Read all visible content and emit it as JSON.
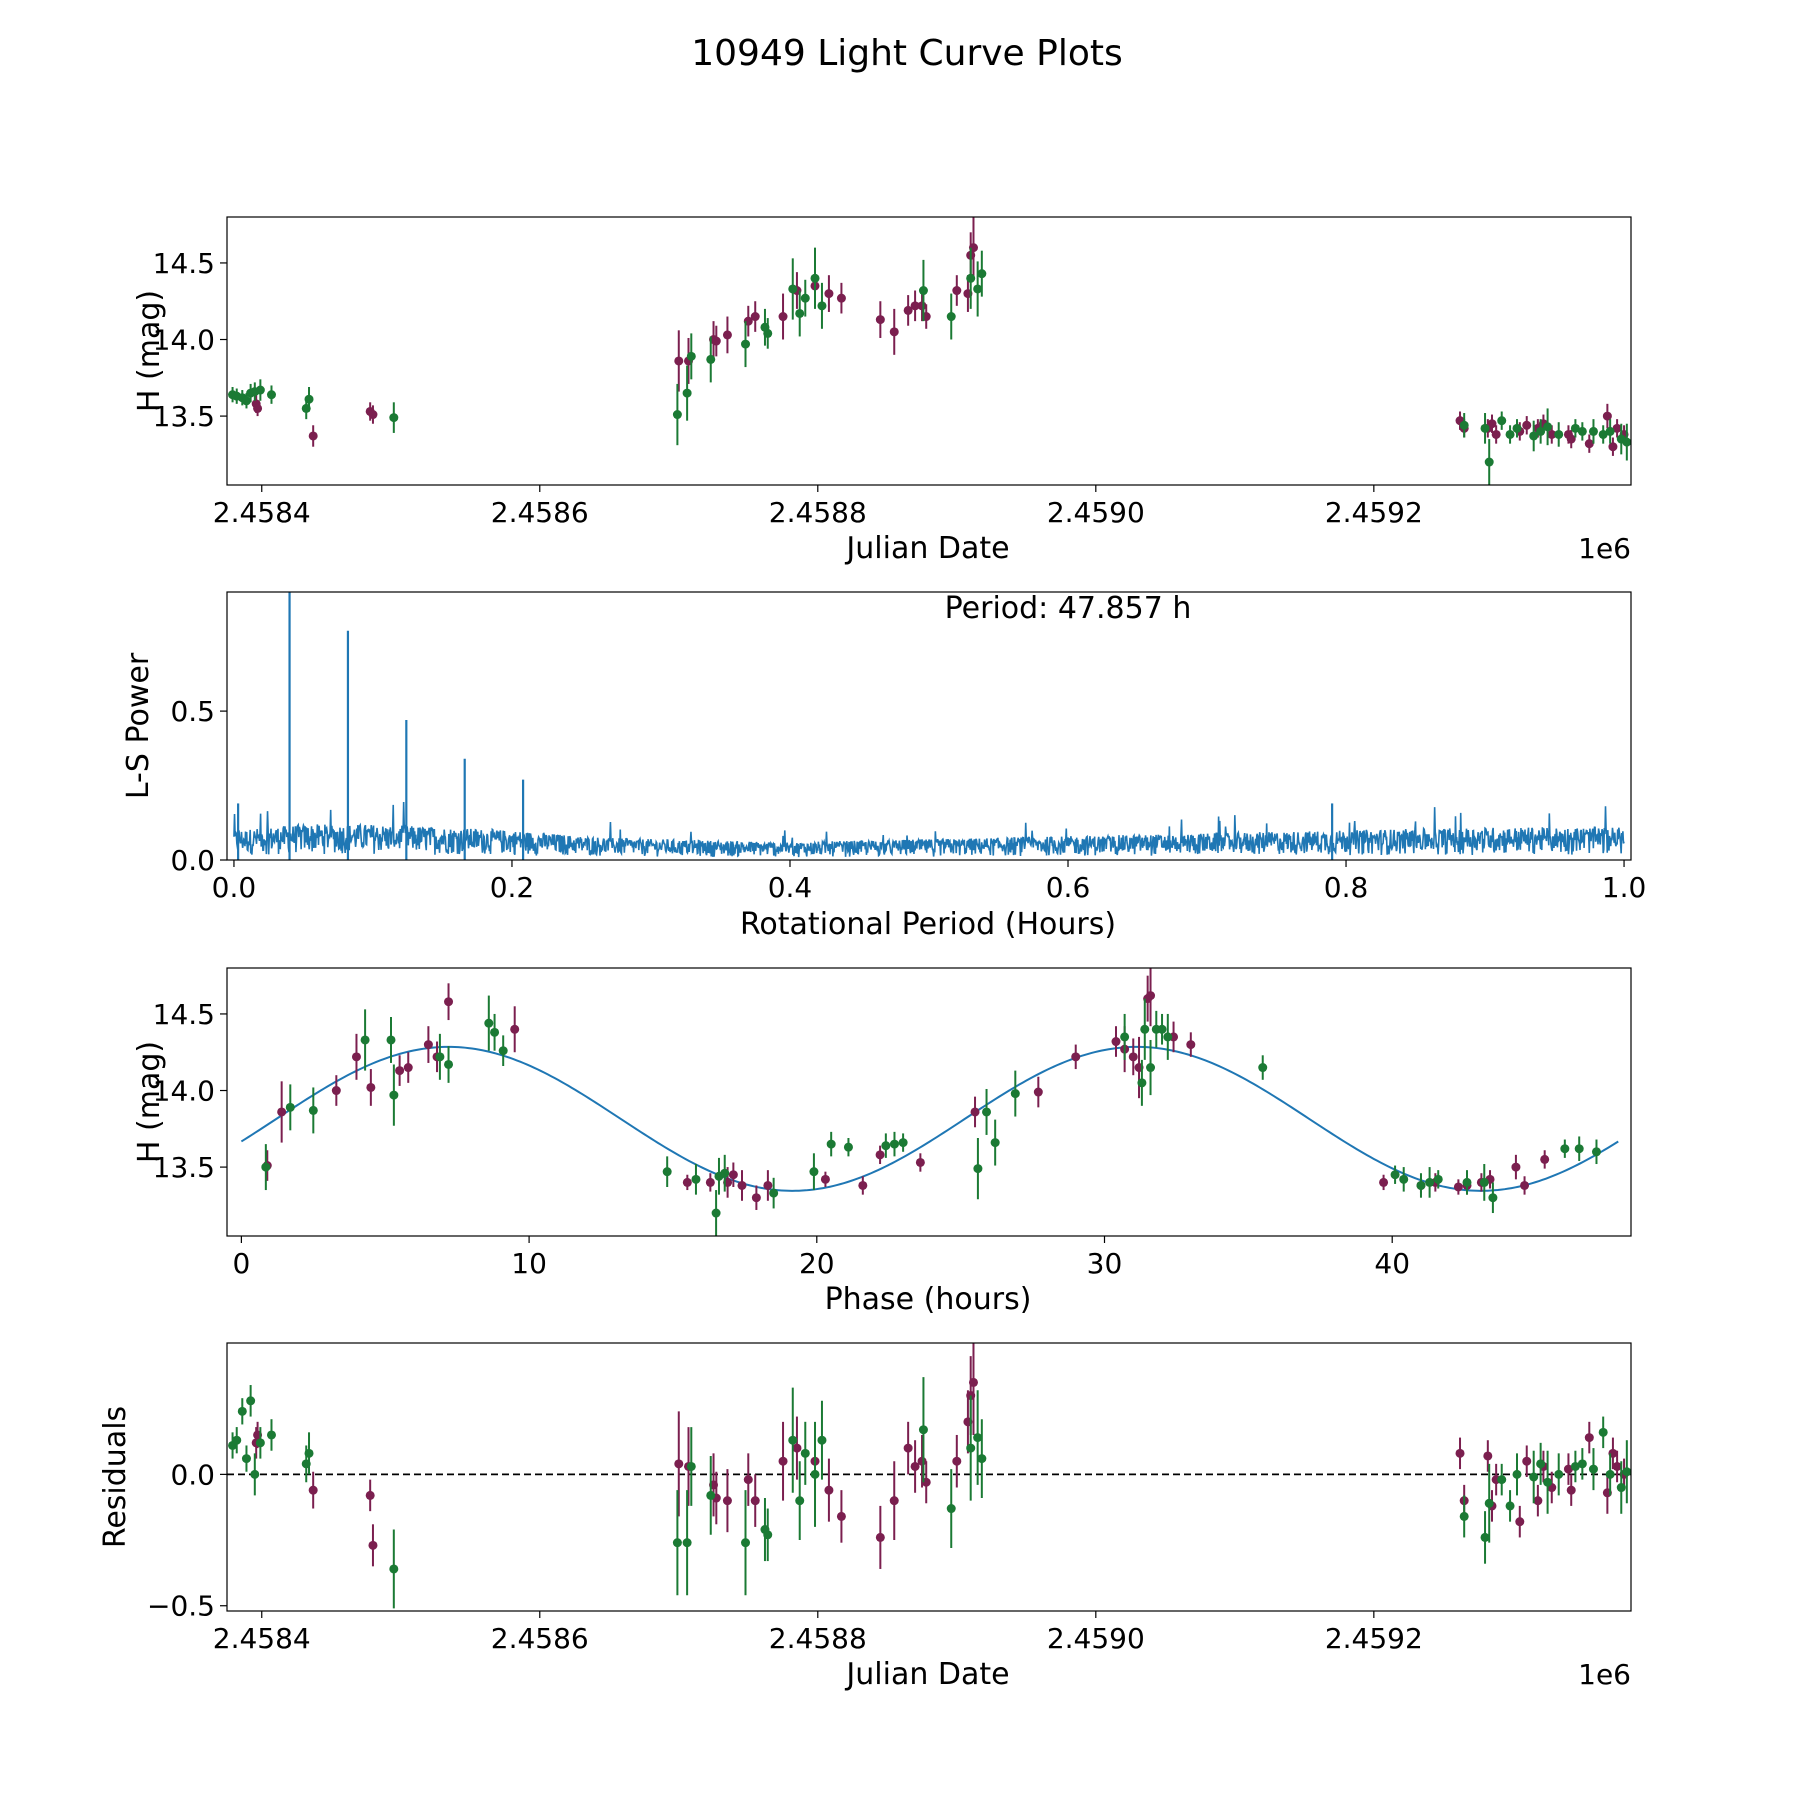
{
  "figure": {
    "title": "10949 Light Curve Plots",
    "colors": {
      "set_a": "#7b1f4f",
      "set_b": "#1b7a34",
      "line": "#1f77b4",
      "axis": "#000000"
    }
  },
  "chart_data": [
    {
      "id": "lightcurve",
      "type": "scatter",
      "xlabel": "Julian Date",
      "ylabel": "H (mag)",
      "offset_label": "1e6",
      "xlim": [
        2.458375,
        2.459385
      ],
      "ylim": [
        13.05,
        14.8
      ],
      "xticks": [
        2.4584,
        2.4586,
        2.4588,
        2.459,
        2.4592
      ],
      "xtick_labels": [
        "2.4584",
        "2.4586",
        "2.4588",
        "2.4590",
        "2.4592"
      ],
      "yticks": [
        13.5,
        14.0,
        14.5
      ],
      "ytick_labels": [
        "13.5",
        "14.0",
        "14.5"
      ],
      "series": [
        {
          "name": "set_a",
          "color": "#7b1f4f",
          "x": [
            2.458396,
            2.458397,
            2.458437,
            2.458478,
            2.45848,
            2.4587,
            2.458707,
            2.458725,
            2.458727,
            2.458735,
            2.45875,
            2.458755,
            2.458775,
            2.458785,
            2.458798,
            2.458808,
            2.458817,
            2.458845,
            2.458855,
            2.458865,
            2.45887,
            2.458875,
            2.458878,
            2.4589,
            2.458908,
            2.45891,
            2.458912,
            2.459262,
            2.459265,
            2.459282,
            2.459285,
            2.459288,
            2.459305,
            2.45931,
            2.459318,
            2.459322,
            2.459328,
            2.45934,
            2.459342,
            2.459355,
            2.459368,
            2.459372,
            2.459375,
            2.45938
          ],
          "y": [
            13.58,
            13.55,
            13.37,
            13.53,
            13.51,
            13.86,
            13.86,
            14.0,
            13.99,
            14.03,
            14.12,
            14.15,
            14.15,
            14.32,
            14.35,
            14.3,
            14.27,
            14.13,
            14.05,
            14.19,
            14.22,
            14.22,
            14.15,
            14.32,
            14.3,
            14.55,
            14.6,
            13.47,
            13.42,
            13.42,
            13.45,
            13.38,
            13.4,
            13.44,
            13.42,
            13.45,
            13.38,
            13.38,
            13.35,
            13.32,
            13.5,
            13.3,
            13.42,
            13.38
          ],
          "err": [
            0.06,
            0.05,
            0.07,
            0.06,
            0.06,
            0.2,
            0.15,
            0.12,
            0.1,
            0.12,
            0.1,
            0.1,
            0.15,
            0.12,
            0.1,
            0.12,
            0.1,
            0.12,
            0.15,
            0.1,
            0.1,
            0.1,
            0.08,
            0.1,
            0.12,
            0.15,
            0.2,
            0.06,
            0.06,
            0.06,
            0.06,
            0.06,
            0.06,
            0.06,
            0.06,
            0.06,
            0.06,
            0.06,
            0.06,
            0.06,
            0.08,
            0.06,
            0.06,
            0.06
          ]
        },
        {
          "name": "set_b",
          "color": "#1b7a34",
          "x": [
            2.458379,
            2.458382,
            2.458386,
            2.458389,
            2.458392,
            2.458395,
            2.458399,
            2.458407,
            2.458432,
            2.458434,
            2.458495,
            2.458699,
            2.458706,
            2.458709,
            2.458723,
            2.458748,
            2.458762,
            2.458764,
            2.458782,
            2.458787,
            2.458791,
            2.458798,
            2.458803,
            2.458876,
            2.458896,
            2.45891,
            2.458915,
            2.458918,
            2.459265,
            2.45928,
            2.459283,
            2.459292,
            2.459298,
            2.459303,
            2.459315,
            2.45932,
            2.459325,
            2.459333,
            2.459345,
            2.45935,
            2.459358,
            2.459365,
            2.45937,
            2.459378,
            2.459382
          ],
          "y": [
            13.64,
            13.63,
            13.62,
            13.6,
            13.65,
            13.66,
            13.67,
            13.64,
            13.55,
            13.61,
            13.49,
            13.51,
            13.65,
            13.89,
            13.87,
            13.97,
            14.08,
            14.04,
            14.33,
            14.17,
            14.27,
            14.4,
            14.22,
            14.32,
            14.15,
            14.4,
            14.33,
            14.43,
            13.44,
            13.42,
            13.2,
            13.47,
            13.38,
            13.42,
            13.37,
            13.4,
            13.43,
            13.38,
            13.42,
            13.4,
            13.4,
            13.38,
            13.4,
            13.35,
            13.33
          ],
          "err": [
            0.05,
            0.05,
            0.05,
            0.05,
            0.06,
            0.06,
            0.07,
            0.06,
            0.07,
            0.08,
            0.1,
            0.2,
            0.18,
            0.15,
            0.15,
            0.15,
            0.12,
            0.1,
            0.2,
            0.15,
            0.12,
            0.2,
            0.15,
            0.2,
            0.15,
            0.2,
            0.18,
            0.15,
            0.08,
            0.1,
            0.15,
            0.06,
            0.06,
            0.06,
            0.1,
            0.08,
            0.12,
            0.08,
            0.06,
            0.06,
            0.08,
            0.06,
            0.08,
            0.1,
            0.12
          ]
        }
      ]
    },
    {
      "id": "periodogram",
      "type": "line",
      "xlabel": "Rotational Period (Hours)",
      "ylabel": "L-S Power",
      "annotation": "Period: 47.857 h",
      "xlim": [
        -0.005,
        1.005
      ],
      "ylim": [
        0.0,
        0.9
      ],
      "xticks": [
        0.0,
        0.2,
        0.4,
        0.6,
        0.8,
        1.0
      ],
      "xtick_labels": [
        "0.0",
        "0.2",
        "0.4",
        "0.6",
        "0.8",
        "1.0"
      ],
      "yticks": [
        0.0,
        0.5
      ],
      "ytick_labels": [
        "0.0",
        "0.5"
      ],
      "peaks": {
        "x": [
          0.04,
          0.082,
          0.124,
          0.166,
          0.208,
          0.003,
          0.79
        ],
        "y": [
          0.92,
          0.77,
          0.47,
          0.34,
          0.27,
          0.19,
          0.19
        ]
      },
      "noise_envelope": {
        "x": [
          0.0,
          0.05,
          0.1,
          0.15,
          0.2,
          0.25,
          0.3,
          0.4,
          0.5,
          0.6,
          0.7,
          0.8,
          0.9,
          1.0
        ],
        "y": [
          0.1,
          0.12,
          0.12,
          0.11,
          0.1,
          0.08,
          0.07,
          0.06,
          0.07,
          0.08,
          0.09,
          0.1,
          0.11,
          0.11
        ]
      }
    },
    {
      "id": "phased",
      "type": "scatter",
      "xlabel": "Phase (hours)",
      "ylabel": "H (mag)",
      "xlim": [
        -0.5,
        48.3
      ],
      "ylim": [
        13.05,
        14.8
      ],
      "xticks": [
        0,
        10,
        20,
        30,
        40
      ],
      "xtick_labels": [
        "0",
        "10",
        "20",
        "30",
        "40"
      ],
      "yticks": [
        13.5,
        14.0,
        14.5
      ],
      "ytick_labels": [
        "13.5",
        "14.0",
        "14.5"
      ],
      "model": {
        "mean": 13.815,
        "amplitude": 0.47,
        "peak_phase": 7.2,
        "period": 23.93,
        "x_range": [
          0,
          47.857
        ]
      },
      "series": [
        {
          "name": "set_a",
          "color": "#7b1f4f",
          "x": [
            0.9,
            1.4,
            3.3,
            4.0,
            4.5,
            5.5,
            5.8,
            6.5,
            6.8,
            7.2,
            9.5,
            15.5,
            16.3,
            16.9,
            17.1,
            17.4,
            17.9,
            18.3,
            20.3,
            21.6,
            22.2,
            23.6,
            25.5,
            27.7,
            29.0,
            30.4,
            30.7,
            31.0,
            31.2,
            31.5,
            31.6,
            32.4,
            33.0,
            39.7,
            41.0,
            41.5,
            42.3,
            42.6,
            43.1,
            43.4,
            44.3,
            44.6,
            45.3
          ],
          "y": [
            13.51,
            13.86,
            14.0,
            14.22,
            14.02,
            14.13,
            14.15,
            14.3,
            14.22,
            14.58,
            14.4,
            13.4,
            13.4,
            13.4,
            13.45,
            13.38,
            13.3,
            13.38,
            13.42,
            13.38,
            13.58,
            13.53,
            13.86,
            13.99,
            14.22,
            14.32,
            14.27,
            14.22,
            14.15,
            14.6,
            14.62,
            14.35,
            14.3,
            13.4,
            13.38,
            13.4,
            13.37,
            13.38,
            13.4,
            13.42,
            13.5,
            13.38,
            13.55
          ],
          "err": [
            0.1,
            0.2,
            0.1,
            0.15,
            0.12,
            0.1,
            0.1,
            0.12,
            0.1,
            0.12,
            0.15,
            0.05,
            0.06,
            0.1,
            0.08,
            0.1,
            0.08,
            0.1,
            0.05,
            0.06,
            0.06,
            0.06,
            0.1,
            0.1,
            0.08,
            0.1,
            0.15,
            0.12,
            0.2,
            0.15,
            0.2,
            0.1,
            0.08,
            0.05,
            0.05,
            0.06,
            0.05,
            0.06,
            0.06,
            0.06,
            0.08,
            0.06,
            0.06
          ]
        },
        {
          "name": "set_b",
          "color": "#1b7a34",
          "x": [
            0.85,
            1.7,
            2.5,
            4.3,
            5.2,
            5.3,
            6.9,
            7.2,
            8.6,
            8.8,
            9.1,
            14.8,
            15.8,
            16.5,
            16.6,
            16.8,
            18.5,
            19.9,
            20.5,
            21.1,
            22.4,
            22.7,
            23.0,
            25.6,
            25.9,
            26.2,
            26.9,
            30.7,
            31.3,
            31.4,
            31.6,
            31.8,
            32.0,
            32.2,
            35.5,
            40.1,
            40.4,
            41.0,
            41.3,
            41.6,
            42.6,
            43.2,
            43.5,
            46.0,
            46.5,
            47.1
          ],
          "y": [
            13.5,
            13.89,
            13.87,
            14.33,
            14.33,
            13.97,
            14.22,
            14.17,
            14.44,
            14.38,
            14.26,
            13.47,
            13.42,
            13.2,
            13.44,
            13.46,
            13.33,
            13.47,
            13.65,
            13.63,
            13.64,
            13.65,
            13.66,
            13.49,
            13.86,
            13.66,
            13.98,
            14.35,
            14.05,
            14.4,
            14.15,
            14.4,
            14.4,
            14.35,
            14.15,
            13.45,
            13.42,
            13.38,
            13.4,
            13.42,
            13.4,
            13.4,
            13.3,
            13.62,
            13.62,
            13.6
          ],
          "err": [
            0.15,
            0.15,
            0.15,
            0.2,
            0.15,
            0.2,
            0.15,
            0.12,
            0.18,
            0.12,
            0.1,
            0.1,
            0.1,
            0.15,
            0.12,
            0.12,
            0.1,
            0.12,
            0.08,
            0.06,
            0.08,
            0.08,
            0.06,
            0.2,
            0.15,
            0.15,
            0.15,
            0.15,
            0.15,
            0.2,
            0.18,
            0.12,
            0.1,
            0.15,
            0.08,
            0.06,
            0.08,
            0.08,
            0.1,
            0.06,
            0.08,
            0.12,
            0.1,
            0.06,
            0.08,
            0.08
          ]
        }
      ]
    },
    {
      "id": "residuals",
      "type": "scatter",
      "xlabel": "Julian Date",
      "ylabel": "Residuals",
      "offset_label": "1e6",
      "xlim": [
        2.458375,
        2.459385
      ],
      "ylim": [
        -0.52,
        0.5
      ],
      "xticks": [
        2.4584,
        2.4586,
        2.4588,
        2.459,
        2.4592
      ],
      "xtick_labels": [
        "2.4584",
        "2.4586",
        "2.4588",
        "2.4590",
        "2.4592"
      ],
      "yticks": [
        -0.5,
        0.0
      ],
      "ytick_labels": [
        "−0.5",
        "0.0"
      ],
      "zero_line": 0.0,
      "series": [
        {
          "name": "set_a",
          "color": "#7b1f4f",
          "x": [
            2.458396,
            2.458397,
            2.458437,
            2.458478,
            2.45848,
            2.4587,
            2.458707,
            2.458725,
            2.458727,
            2.458735,
            2.45875,
            2.458755,
            2.458775,
            2.458785,
            2.458798,
            2.458808,
            2.458817,
            2.458845,
            2.458855,
            2.458865,
            2.45887,
            2.458875,
            2.458878,
            2.4589,
            2.458908,
            2.45891,
            2.458912,
            2.459262,
            2.459265,
            2.459282,
            2.459285,
            2.459288,
            2.459305,
            2.45931,
            2.459318,
            2.459322,
            2.459328,
            2.45934,
            2.459342,
            2.459355,
            2.459368,
            2.459372,
            2.459375,
            2.45938
          ],
          "y": [
            0.12,
            0.15,
            -0.06,
            -0.08,
            -0.27,
            0.04,
            0.03,
            -0.04,
            -0.09,
            -0.1,
            -0.02,
            -0.1,
            0.05,
            0.1,
            0.05,
            -0.06,
            -0.16,
            -0.24,
            -0.1,
            0.1,
            0.03,
            0.05,
            -0.03,
            0.05,
            0.2,
            0.3,
            0.35,
            0.08,
            -0.1,
            0.07,
            -0.12,
            -0.02,
            -0.18,
            0.05,
            -0.1,
            0.03,
            -0.05,
            0.02,
            -0.06,
            0.14,
            -0.07,
            0.08,
            0.03,
            0.0
          ],
          "err": [
            0.06,
            0.05,
            0.07,
            0.06,
            0.08,
            0.2,
            0.15,
            0.12,
            0.1,
            0.12,
            0.1,
            0.1,
            0.15,
            0.12,
            0.1,
            0.12,
            0.1,
            0.12,
            0.15,
            0.1,
            0.1,
            0.1,
            0.08,
            0.1,
            0.12,
            0.15,
            0.2,
            0.06,
            0.06,
            0.06,
            0.06,
            0.06,
            0.06,
            0.06,
            0.06,
            0.06,
            0.06,
            0.06,
            0.06,
            0.06,
            0.08,
            0.06,
            0.06,
            0.06
          ]
        },
        {
          "name": "set_b",
          "color": "#1b7a34",
          "x": [
            2.458379,
            2.458382,
            2.458386,
            2.458389,
            2.458392,
            2.458395,
            2.458399,
            2.458407,
            2.458432,
            2.458434,
            2.458495,
            2.458699,
            2.458706,
            2.458709,
            2.458723,
            2.458748,
            2.458762,
            2.458764,
            2.458782,
            2.458787,
            2.458791,
            2.458798,
            2.458803,
            2.458876,
            2.458896,
            2.45891,
            2.458915,
            2.458918,
            2.459265,
            2.45928,
            2.459283,
            2.459292,
            2.459298,
            2.459303,
            2.459315,
            2.45932,
            2.459325,
            2.459333,
            2.459345,
            2.45935,
            2.459358,
            2.459365,
            2.45937,
            2.459378,
            2.459382
          ],
          "y": [
            0.11,
            0.13,
            0.24,
            0.06,
            0.28,
            0.0,
            0.12,
            0.15,
            0.04,
            0.08,
            -0.36,
            -0.26,
            -0.26,
            0.03,
            -0.08,
            -0.26,
            -0.21,
            -0.23,
            0.13,
            -0.1,
            0.08,
            0.0,
            0.13,
            0.17,
            -0.13,
            0.1,
            0.14,
            0.06,
            -0.16,
            -0.24,
            -0.11,
            -0.02,
            -0.12,
            0.0,
            -0.01,
            0.04,
            -0.03,
            0.0,
            0.03,
            0.04,
            0.02,
            0.16,
            0.0,
            -0.05,
            0.01
          ],
          "err": [
            0.05,
            0.05,
            0.05,
            0.05,
            0.06,
            0.08,
            0.06,
            0.06,
            0.07,
            0.08,
            0.15,
            0.2,
            0.2,
            0.15,
            0.15,
            0.2,
            0.12,
            0.1,
            0.2,
            0.15,
            0.12,
            0.2,
            0.15,
            0.2,
            0.15,
            0.2,
            0.18,
            0.15,
            0.08,
            0.1,
            0.15,
            0.06,
            0.06,
            0.08,
            0.1,
            0.08,
            0.12,
            0.08,
            0.06,
            0.06,
            0.08,
            0.06,
            0.08,
            0.1,
            0.12
          ]
        }
      ]
    }
  ]
}
